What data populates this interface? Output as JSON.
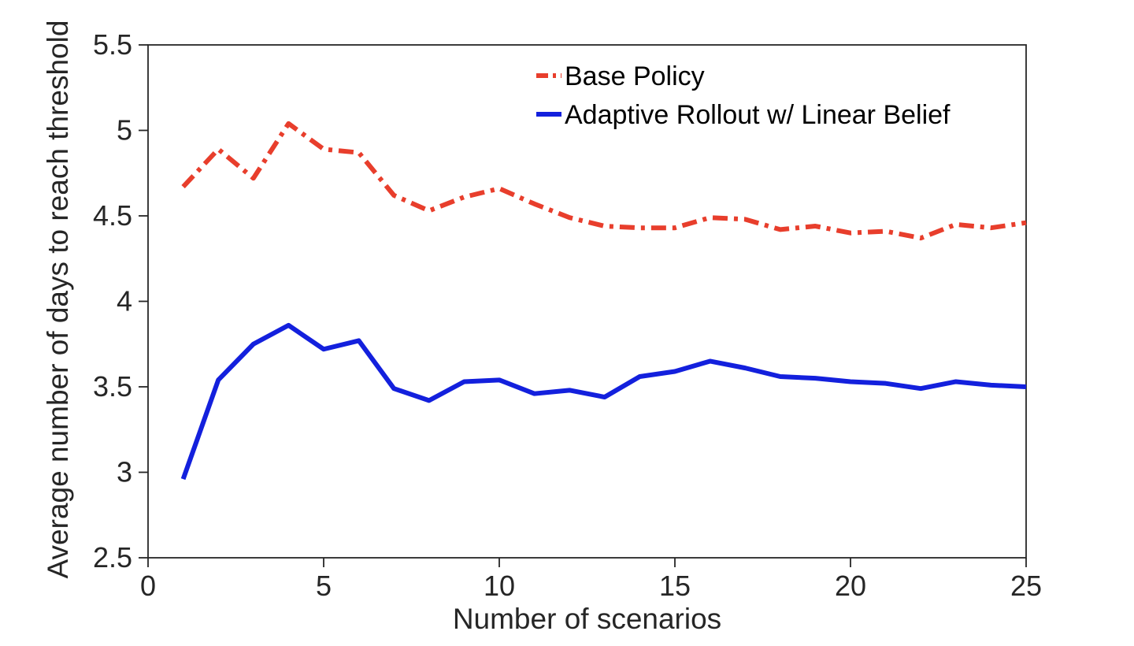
{
  "figure": {
    "background": "#ffffff",
    "axis_color": "#262626",
    "text_color": "#262626"
  },
  "chart_data": {
    "type": "line",
    "title": "",
    "xlabel": "Number of scenarios",
    "ylabel": "Average number of days to reach threshold",
    "xlim": [
      0,
      25
    ],
    "ylim": [
      2.5,
      5.5
    ],
    "xticks": [
      0,
      5,
      10,
      15,
      20,
      25
    ],
    "yticks": [
      2.5,
      3,
      3.5,
      4,
      4.5,
      5,
      5.5
    ],
    "grid": false,
    "legend_position": "top-right-inside",
    "legend_box": false,
    "x": [
      1,
      2,
      3,
      4,
      5,
      6,
      7,
      8,
      9,
      10,
      11,
      12,
      13,
      14,
      15,
      16,
      17,
      18,
      19,
      20,
      21,
      22,
      23,
      24,
      25
    ],
    "series": [
      {
        "name": "Base Policy",
        "color": "#e83e2c",
        "style": "dash-dot",
        "line_width": 6,
        "values": [
          4.67,
          4.89,
          4.72,
          5.04,
          4.89,
          4.87,
          4.62,
          4.53,
          4.61,
          4.66,
          4.57,
          4.49,
          4.44,
          4.43,
          4.43,
          4.49,
          4.48,
          4.42,
          4.44,
          4.4,
          4.41,
          4.37,
          4.45,
          4.43,
          4.46
        ]
      },
      {
        "name": "Adaptive Rollout w/ Linear Belief",
        "color": "#1320dd",
        "style": "solid",
        "line_width": 6,
        "values": [
          2.96,
          3.54,
          3.75,
          3.86,
          3.72,
          3.77,
          3.49,
          3.42,
          3.53,
          3.54,
          3.46,
          3.48,
          3.44,
          3.56,
          3.59,
          3.65,
          3.61,
          3.56,
          3.55,
          3.53,
          3.52,
          3.49,
          3.53,
          3.51,
          3.5
        ]
      }
    ]
  }
}
